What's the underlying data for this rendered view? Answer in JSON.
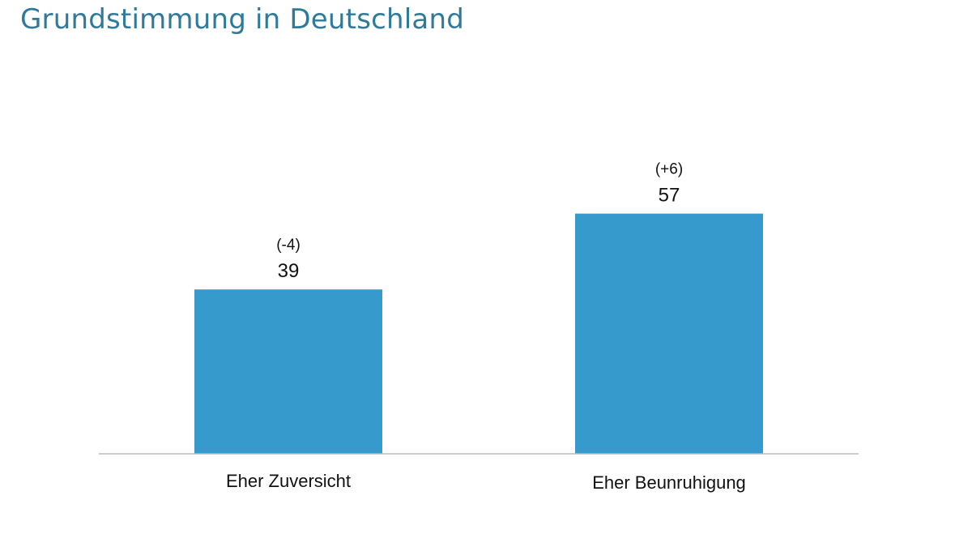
{
  "chart_data": {
    "type": "bar",
    "title": "Grundstimmung in Deutschland",
    "categories": [
      "Eher Zuversicht",
      "Eher Beunruhigung"
    ],
    "values": [
      39,
      57
    ],
    "changes": [
      "(-4)",
      "(+6)"
    ],
    "bar_color": "#369bcc",
    "axis_color": "#bbbbbb",
    "ylim": [
      0,
      100
    ],
    "grid": false
  }
}
